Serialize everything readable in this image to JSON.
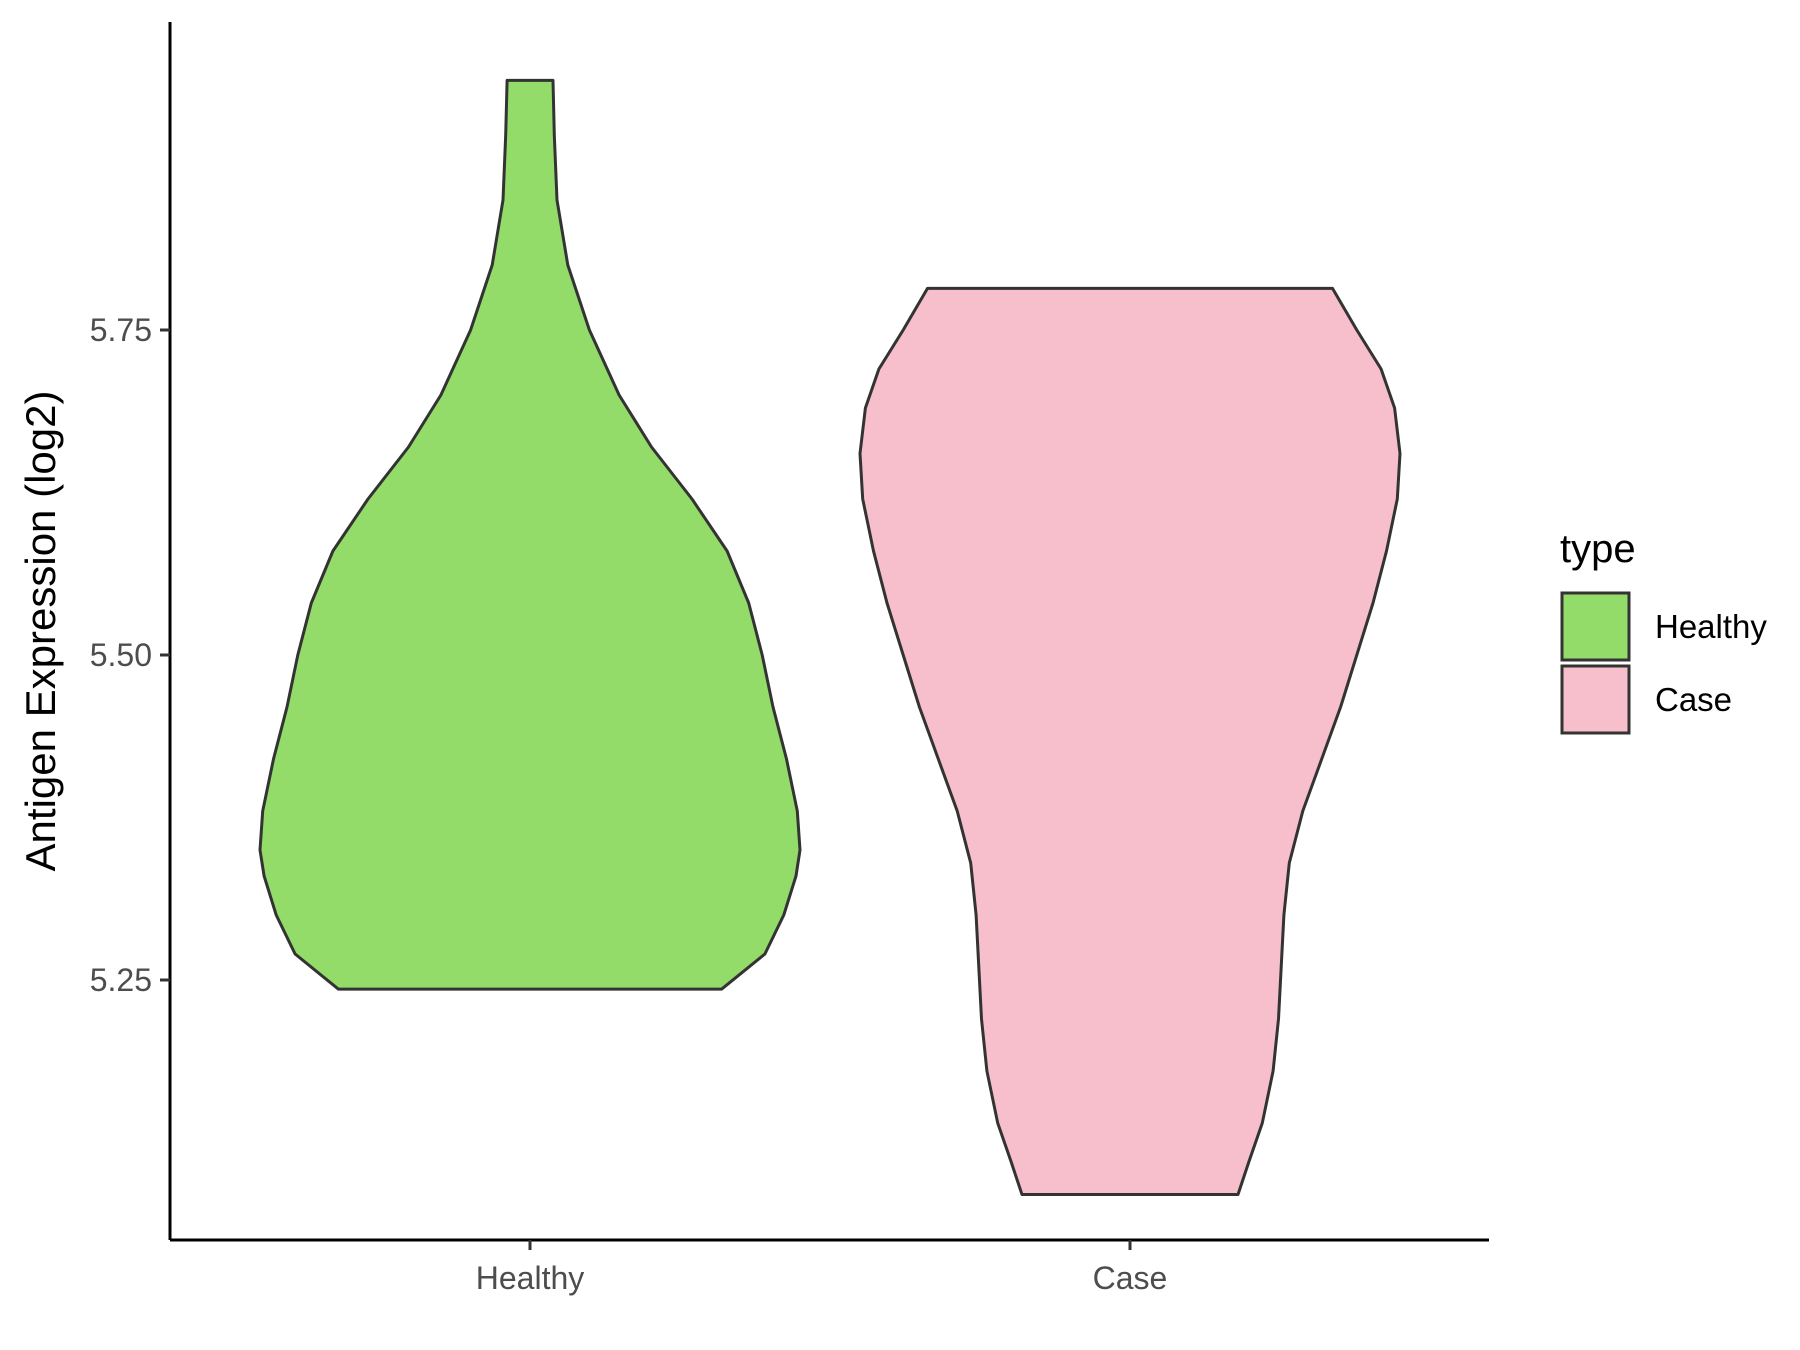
{
  "chart_data": {
    "type": "violin",
    "title": "",
    "xlabel": "",
    "ylabel": "Antigen Expression (log2)",
    "categories": [
      "Healthy",
      "Case"
    ],
    "yticks": [
      "5.25",
      "5.50",
      "5.75"
    ],
    "ytick_values": [
      5.25,
      5.5,
      5.75
    ],
    "ylim": [
      5.05,
      5.99
    ],
    "grid": false,
    "legend": {
      "title": "type",
      "position": "right",
      "entries": [
        "Healthy",
        "Case"
      ]
    },
    "series": [
      {
        "name": "Healthy",
        "color": "#93DC6A",
        "min": 5.243,
        "max": 5.942,
        "density": [
          [
            5.243,
            0.71
          ],
          [
            5.27,
            0.87
          ],
          [
            5.3,
            0.94
          ],
          [
            5.33,
            0.985
          ],
          [
            5.35,
            1.0
          ],
          [
            5.38,
            0.99
          ],
          [
            5.42,
            0.95
          ],
          [
            5.46,
            0.9
          ],
          [
            5.5,
            0.86
          ],
          [
            5.54,
            0.81
          ],
          [
            5.58,
            0.73
          ],
          [
            5.62,
            0.6
          ],
          [
            5.66,
            0.45
          ],
          [
            5.7,
            0.33
          ],
          [
            5.75,
            0.22
          ],
          [
            5.8,
            0.14
          ],
          [
            5.85,
            0.1
          ],
          [
            5.9,
            0.09
          ],
          [
            5.942,
            0.085
          ]
        ]
      },
      {
        "name": "Case",
        "color": "#F7BFCB",
        "min": 5.085,
        "max": 5.782,
        "density": [
          [
            5.085,
            0.4
          ],
          [
            5.11,
            0.44
          ],
          [
            5.14,
            0.49
          ],
          [
            5.18,
            0.53
          ],
          [
            5.22,
            0.55
          ],
          [
            5.26,
            0.56
          ],
          [
            5.3,
            0.57
          ],
          [
            5.34,
            0.59
          ],
          [
            5.38,
            0.64
          ],
          [
            5.42,
            0.71
          ],
          [
            5.46,
            0.78
          ],
          [
            5.5,
            0.84
          ],
          [
            5.54,
            0.9
          ],
          [
            5.58,
            0.95
          ],
          [
            5.62,
            0.99
          ],
          [
            5.655,
            1.0
          ],
          [
            5.69,
            0.98
          ],
          [
            5.72,
            0.93
          ],
          [
            5.75,
            0.84
          ],
          [
            5.782,
            0.75
          ]
        ]
      }
    ]
  }
}
